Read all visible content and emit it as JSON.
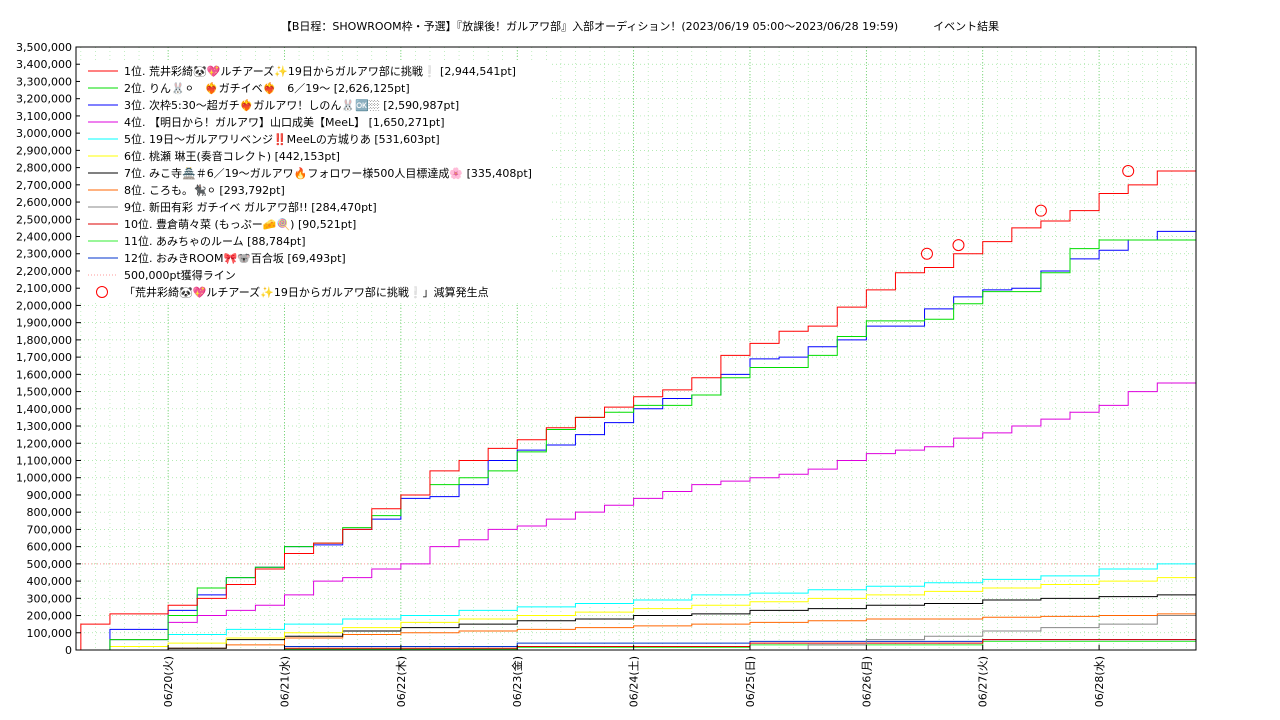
{
  "chart_data": {
    "type": "line",
    "title": "【B日程：SHOWROOM枠・予選】『放課後！ガルアワ部』入部オーディション！(2023/06/19 05:00〜2023/06/28 19:59)",
    "subtitle": "イベント結果",
    "xlabel": "",
    "ylabel": "",
    "ylim": [
      0,
      3500000
    ],
    "xlim": [
      "2023-06-19T05:00",
      "2023-06-28T19:59"
    ],
    "grid": true,
    "legend_position": "top-left",
    "x_tick_labels": [
      "06/20(火)",
      "06/21(水)",
      "06/22(木)",
      "06/23(金)",
      "06/24(土)",
      "06/25(日)",
      "06/26(月)",
      "06/27(火)",
      "06/28(水)"
    ],
    "y_tick_labels": [
      "0",
      "100,000",
      "200,000",
      "300,000",
      "400,000",
      "500,000",
      "600,000",
      "700,000",
      "800,000",
      "900,000",
      "1,000,000",
      "1,100,000",
      "1,200,000",
      "1,300,000",
      "1,400,000",
      "1,500,000",
      "1,600,000",
      "1,700,000",
      "1,800,000",
      "1,900,000",
      "2,000,000",
      "2,100,000",
      "2,200,000",
      "2,300,000",
      "2,400,000",
      "2,500,000",
      "2,600,000",
      "2,700,000",
      "2,800,000",
      "2,900,000",
      "3,000,000",
      "3,100,000",
      "3,200,000",
      "3,300,000",
      "3,400,000",
      "3,500,000"
    ],
    "series": [
      {
        "name": "1位. 荒井彩綺🐼💖ルチアーズ✨19日からガルアワ部に挑戦❕ [2,944,541pt]",
        "color": "#ff0000",
        "x": [
          "2023-06-19T05:00",
          "2023-06-19T06:00",
          "2023-06-19T12:00",
          "2023-06-20T00:00",
          "2023-06-20T06:00",
          "2023-06-20T12:00",
          "2023-06-20T18:00",
          "2023-06-21T00:00",
          "2023-06-21T06:00",
          "2023-06-21T12:00",
          "2023-06-21T18:00",
          "2023-06-22T00:00",
          "2023-06-22T06:00",
          "2023-06-22T12:00",
          "2023-06-22T18:00",
          "2023-06-23T00:00",
          "2023-06-23T06:00",
          "2023-06-23T12:00",
          "2023-06-23T18:00",
          "2023-06-24T00:00",
          "2023-06-24T06:00",
          "2023-06-24T12:00",
          "2023-06-24T18:00",
          "2023-06-25T00:00",
          "2023-06-25T06:00",
          "2023-06-25T12:00",
          "2023-06-25T18:00",
          "2023-06-26T00:00",
          "2023-06-26T06:00",
          "2023-06-26T12:00",
          "2023-06-26T18:00",
          "2023-06-27T00:00",
          "2023-06-27T06:00",
          "2023-06-27T12:00",
          "2023-06-27T18:00",
          "2023-06-28T00:00",
          "2023-06-28T06:00",
          "2023-06-28T12:00",
          "2023-06-28T19:59"
        ],
        "y": [
          0,
          150000,
          210000,
          260000,
          300000,
          380000,
          470000,
          560000,
          620000,
          700000,
          820000,
          900000,
          1040000,
          1100000,
          1170000,
          1220000,
          1290000,
          1350000,
          1410000,
          1470000,
          1510000,
          1580000,
          1710000,
          1780000,
          1850000,
          1880000,
          1990000,
          2090000,
          2190000,
          2220000,
          2300000,
          2370000,
          2450000,
          2490000,
          2550000,
          2650000,
          2700000,
          2780000,
          2944541
        ]
      },
      {
        "name": "2位. りん🐰⚪　❤️‍🔥ガチイベ❤️‍🔥　6／19〜 [2,626,125pt]",
        "color": "#00dd00",
        "x": [
          "2023-06-19T05:00",
          "2023-06-19T12:00",
          "2023-06-20T00:00",
          "2023-06-20T06:00",
          "2023-06-20T12:00",
          "2023-06-20T18:00",
          "2023-06-21T00:00",
          "2023-06-21T06:00",
          "2023-06-21T12:00",
          "2023-06-21T18:00",
          "2023-06-22T00:00",
          "2023-06-22T06:00",
          "2023-06-22T12:00",
          "2023-06-22T18:00",
          "2023-06-23T00:00",
          "2023-06-23T06:00",
          "2023-06-23T12:00",
          "2023-06-23T18:00",
          "2023-06-24T00:00",
          "2023-06-24T06:00",
          "2023-06-24T12:00",
          "2023-06-24T18:00",
          "2023-06-25T00:00",
          "2023-06-25T06:00",
          "2023-06-25T12:00",
          "2023-06-25T18:00",
          "2023-06-26T00:00",
          "2023-06-26T06:00",
          "2023-06-26T12:00",
          "2023-06-26T18:00",
          "2023-06-27T00:00",
          "2023-06-27T06:00",
          "2023-06-27T12:00",
          "2023-06-27T18:00",
          "2023-06-28T00:00",
          "2023-06-28T06:00",
          "2023-06-28T12:00",
          "2023-06-28T19:59"
        ],
        "y": [
          0,
          60000,
          200000,
          360000,
          420000,
          480000,
          600000,
          620000,
          710000,
          780000,
          900000,
          960000,
          1000000,
          1040000,
          1150000,
          1280000,
          1350000,
          1380000,
          1420000,
          1420000,
          1480000,
          1580000,
          1640000,
          1640000,
          1710000,
          1820000,
          1910000,
          1910000,
          1920000,
          2010000,
          2080000,
          2080000,
          2190000,
          2330000,
          2380000,
          2380000,
          2380000,
          2626125
        ]
      },
      {
        "name": "3位. 次枠5:30〜超ガチ❤️‍🔥ガルアワ！しのん🐰🆗🏼 [2,590,987pt]",
        "color": "#0000ff",
        "x": [
          "2023-06-19T05:00",
          "2023-06-19T12:00",
          "2023-06-20T00:00",
          "2023-06-20T06:00",
          "2023-06-20T12:00",
          "2023-06-20T18:00",
          "2023-06-21T00:00",
          "2023-06-21T06:00",
          "2023-06-21T12:00",
          "2023-06-21T18:00",
          "2023-06-22T00:00",
          "2023-06-22T06:00",
          "2023-06-22T12:00",
          "2023-06-22T18:00",
          "2023-06-23T00:00",
          "2023-06-23T06:00",
          "2023-06-23T12:00",
          "2023-06-23T18:00",
          "2023-06-24T00:00",
          "2023-06-24T06:00",
          "2023-06-24T12:00",
          "2023-06-24T18:00",
          "2023-06-25T00:00",
          "2023-06-25T06:00",
          "2023-06-25T12:00",
          "2023-06-25T18:00",
          "2023-06-26T00:00",
          "2023-06-26T06:00",
          "2023-06-26T12:00",
          "2023-06-26T18:00",
          "2023-06-27T00:00",
          "2023-06-27T06:00",
          "2023-06-27T12:00",
          "2023-06-27T18:00",
          "2023-06-28T00:00",
          "2023-06-28T06:00",
          "2023-06-28T12:00",
          "2023-06-28T19:59"
        ],
        "y": [
          0,
          120000,
          230000,
          320000,
          420000,
          480000,
          600000,
          610000,
          700000,
          760000,
          880000,
          890000,
          960000,
          1100000,
          1160000,
          1190000,
          1250000,
          1320000,
          1400000,
          1460000,
          1480000,
          1600000,
          1690000,
          1700000,
          1760000,
          1800000,
          1880000,
          1880000,
          1980000,
          2050000,
          2090000,
          2100000,
          2200000,
          2270000,
          2320000,
          2380000,
          2430000,
          2590987
        ]
      },
      {
        "name": "4位. 【明日から！ガルアワ】山口成美【MeeL】 [1,650,271pt]",
        "color": "#dd00dd",
        "x": [
          "2023-06-19T05:00",
          "2023-06-19T12:00",
          "2023-06-20T00:00",
          "2023-06-20T06:00",
          "2023-06-20T12:00",
          "2023-06-20T18:00",
          "2023-06-21T00:00",
          "2023-06-21T06:00",
          "2023-06-21T12:00",
          "2023-06-21T18:00",
          "2023-06-22T00:00",
          "2023-06-22T06:00",
          "2023-06-22T12:00",
          "2023-06-22T18:00",
          "2023-06-23T00:00",
          "2023-06-23T06:00",
          "2023-06-23T12:00",
          "2023-06-23T18:00",
          "2023-06-24T00:00",
          "2023-06-24T06:00",
          "2023-06-24T12:00",
          "2023-06-24T18:00",
          "2023-06-25T00:00",
          "2023-06-25T06:00",
          "2023-06-25T12:00",
          "2023-06-25T18:00",
          "2023-06-26T00:00",
          "2023-06-26T06:00",
          "2023-06-26T12:00",
          "2023-06-26T18:00",
          "2023-06-27T00:00",
          "2023-06-27T06:00",
          "2023-06-27T12:00",
          "2023-06-27T18:00",
          "2023-06-28T00:00",
          "2023-06-28T06:00",
          "2023-06-28T12:00",
          "2023-06-28T19:59"
        ],
        "y": [
          0,
          60000,
          160000,
          200000,
          230000,
          260000,
          320000,
          400000,
          420000,
          470000,
          500000,
          600000,
          640000,
          700000,
          720000,
          760000,
          800000,
          840000,
          880000,
          920000,
          960000,
          980000,
          1000000,
          1020000,
          1050000,
          1100000,
          1140000,
          1160000,
          1180000,
          1230000,
          1260000,
          1300000,
          1340000,
          1380000,
          1420000,
          1500000,
          1550000,
          1650271
        ]
      },
      {
        "name": "5位. 19日〜ガルアワリベンジ‼️MeeLの方城りあ [531,603pt]",
        "color": "#00ffff",
        "x": [
          "2023-06-19T05:00",
          "2023-06-19T12:00",
          "2023-06-20T00:00",
          "2023-06-20T12:00",
          "2023-06-21T00:00",
          "2023-06-21T12:00",
          "2023-06-22T00:00",
          "2023-06-22T12:00",
          "2023-06-23T00:00",
          "2023-06-23T12:00",
          "2023-06-24T00:00",
          "2023-06-24T12:00",
          "2023-06-25T00:00",
          "2023-06-25T12:00",
          "2023-06-26T00:00",
          "2023-06-26T12:00",
          "2023-06-27T00:00",
          "2023-06-27T12:00",
          "2023-06-28T00:00",
          "2023-06-28T12:00",
          "2023-06-28T19:59"
        ],
        "y": [
          0,
          60000,
          90000,
          120000,
          150000,
          180000,
          200000,
          230000,
          250000,
          270000,
          290000,
          320000,
          330000,
          350000,
          370000,
          390000,
          410000,
          430000,
          470000,
          500000,
          531603
        ]
      },
      {
        "name": "6位. 桃瀬 琳王(奏音コレクト) [442,153pt]",
        "color": "#ffff00",
        "x": [
          "2023-06-19T05:00",
          "2023-06-19T12:00",
          "2023-06-20T00:00",
          "2023-06-20T12:00",
          "2023-06-21T00:00",
          "2023-06-21T12:00",
          "2023-06-22T00:00",
          "2023-06-22T12:00",
          "2023-06-23T00:00",
          "2023-06-23T12:00",
          "2023-06-24T00:00",
          "2023-06-24T12:00",
          "2023-06-25T00:00",
          "2023-06-25T12:00",
          "2023-06-26T00:00",
          "2023-06-26T12:00",
          "2023-06-27T00:00",
          "2023-06-27T12:00",
          "2023-06-28T00:00",
          "2023-06-28T12:00",
          "2023-06-28T19:59"
        ],
        "y": [
          0,
          20000,
          40000,
          70000,
          100000,
          130000,
          160000,
          180000,
          200000,
          220000,
          240000,
          260000,
          280000,
          300000,
          320000,
          340000,
          360000,
          380000,
          400000,
          420000,
          442153
        ]
      },
      {
        "name": "7位. みこ寺🏯＃6／19〜ガルアワ🔥フォロワー様500人目標達成🌸 [335,408pt]",
        "color": "#000000",
        "x": [
          "2023-06-19T05:00",
          "2023-06-20T00:00",
          "2023-06-20T12:00",
          "2023-06-21T00:00",
          "2023-06-21T12:00",
          "2023-06-22T00:00",
          "2023-06-22T12:00",
          "2023-06-23T00:00",
          "2023-06-23T12:00",
          "2023-06-24T00:00",
          "2023-06-24T12:00",
          "2023-06-25T00:00",
          "2023-06-25T12:00",
          "2023-06-26T00:00",
          "2023-06-26T12:00",
          "2023-06-27T00:00",
          "2023-06-27T12:00",
          "2023-06-28T00:00",
          "2023-06-28T12:00",
          "2023-06-28T19:59"
        ],
        "y": [
          0,
          10000,
          60000,
          80000,
          110000,
          130000,
          150000,
          170000,
          180000,
          200000,
          210000,
          230000,
          240000,
          260000,
          270000,
          290000,
          300000,
          310000,
          320000,
          335408
        ]
      },
      {
        "name": "8位. ころも。🐈‍⬛⚪ [293,792pt]",
        "color": "#ff6600",
        "x": [
          "2023-06-19T05:00",
          "2023-06-20T00:00",
          "2023-06-20T12:00",
          "2023-06-21T00:00",
          "2023-06-21T12:00",
          "2023-06-22T00:00",
          "2023-06-22T12:00",
          "2023-06-23T00:00",
          "2023-06-23T12:00",
          "2023-06-24T00:00",
          "2023-06-24T12:00",
          "2023-06-25T00:00",
          "2023-06-25T12:00",
          "2023-06-26T00:00",
          "2023-06-26T12:00",
          "2023-06-27T00:00",
          "2023-06-27T12:00",
          "2023-06-28T00:00",
          "2023-06-28T12:00",
          "2023-06-28T19:59"
        ],
        "y": [
          0,
          10000,
          30000,
          70000,
          90000,
          100000,
          110000,
          120000,
          130000,
          140000,
          150000,
          160000,
          170000,
          180000,
          180000,
          190000,
          195000,
          200000,
          210000,
          293792
        ]
      },
      {
        "name": "9位. 新田有彩 ガチイベ ガルアワ部!! [284,470pt]",
        "color": "#888888",
        "x": [
          "2023-06-19T05:00",
          "2023-06-25T00:00",
          "2023-06-25T12:00",
          "2023-06-26T00:00",
          "2023-06-26T12:00",
          "2023-06-27T00:00",
          "2023-06-27T12:00",
          "2023-06-28T00:00",
          "2023-06-28T12:00",
          "2023-06-28T19:59"
        ],
        "y": [
          0,
          0,
          30000,
          60000,
          80000,
          110000,
          130000,
          150000,
          200000,
          284470
        ]
      },
      {
        "name": "10位. 豊倉萌々菜 (もっぷー🧀🍭) [90,521pt]",
        "color": "#dd0000",
        "x": [
          "2023-06-19T05:00",
          "2023-06-21T00:00",
          "2023-06-23T00:00",
          "2023-06-25T00:00",
          "2023-06-27T00:00",
          "2023-06-28T19:59"
        ],
        "y": [
          0,
          10000,
          20000,
          40000,
          60000,
          90521
        ]
      },
      {
        "name": "11位. あみちゃのルーム [88,784pt]",
        "color": "#33ee33",
        "x": [
          "2023-06-19T05:00",
          "2023-06-21T00:00",
          "2023-06-23T00:00",
          "2023-06-25T00:00",
          "2023-06-27T00:00",
          "2023-06-28T19:59"
        ],
        "y": [
          0,
          5000,
          15000,
          30000,
          50000,
          88784
        ]
      },
      {
        "name": "12位. おみきROOM🎀🐨百合坂 [69,493pt]",
        "color": "#0033cc",
        "x": [
          "2023-06-19T05:00",
          "2023-06-21T00:00",
          "2023-06-23T00:00",
          "2023-06-25T00:00",
          "2023-06-27T00:00",
          "2023-06-28T19:59"
        ],
        "y": [
          0,
          20000,
          40000,
          50000,
          60000,
          69493
        ]
      }
    ],
    "reference_line": {
      "name": "500,000pt獲得ライン",
      "value": 500000,
      "color": "#ff9999"
    },
    "deduction_points": {
      "name": "「荒井彩綺🐼💖ルチアーズ✨19日からガルアワ部に挑戦❕」減算発生点",
      "color": "#ff0000",
      "x": [
        "2023-06-26T12:30",
        "2023-06-26T19:00",
        "2023-06-27T12:00",
        "2023-06-28T06:00"
      ],
      "y": [
        2300000,
        2350000,
        2550000,
        2780000
      ]
    }
  }
}
